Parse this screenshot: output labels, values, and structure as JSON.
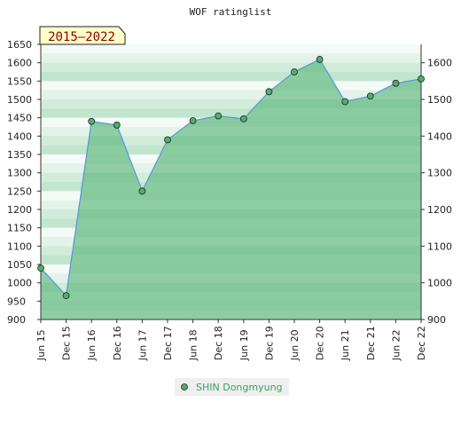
{
  "chart_data": {
    "type": "area",
    "title": "WOF ratinglist",
    "badge": "2015–2022",
    "x": [
      "Jun 15",
      "Dec 15",
      "Jun 16",
      "Dec 16",
      "Jun 17",
      "Dec 17",
      "Jun 18",
      "Dec 18",
      "Jun 19",
      "Dec 19",
      "Jun 20",
      "Dec 20",
      "Jun 21",
      "Dec 21",
      "Jun 22",
      "Dec 22"
    ],
    "series": [
      {
        "name": "SHIN Dongmyung",
        "values": [
          1040,
          965,
          1440,
          1430,
          1250,
          1390,
          1442,
          1455,
          1447,
          1521,
          1575,
          1609,
          1494,
          1509,
          1544,
          1556
        ]
      }
    ],
    "y_left_ticks": [
      900,
      950,
      1000,
      1050,
      1100,
      1150,
      1200,
      1250,
      1300,
      1350,
      1400,
      1450,
      1500,
      1550,
      1600,
      1650
    ],
    "y_right_ticks": [
      900,
      1000,
      1100,
      1200,
      1300,
      1400,
      1500,
      1600
    ],
    "ylim": [
      900,
      1650
    ],
    "grid": true,
    "legend_position": "bottom-center",
    "colors": {
      "fill": "#7cc695",
      "line": "#5b9bd5",
      "marker": "#4fae6c",
      "legend_text": "#3aa35a",
      "badge_bg": "#ffffc8"
    }
  }
}
